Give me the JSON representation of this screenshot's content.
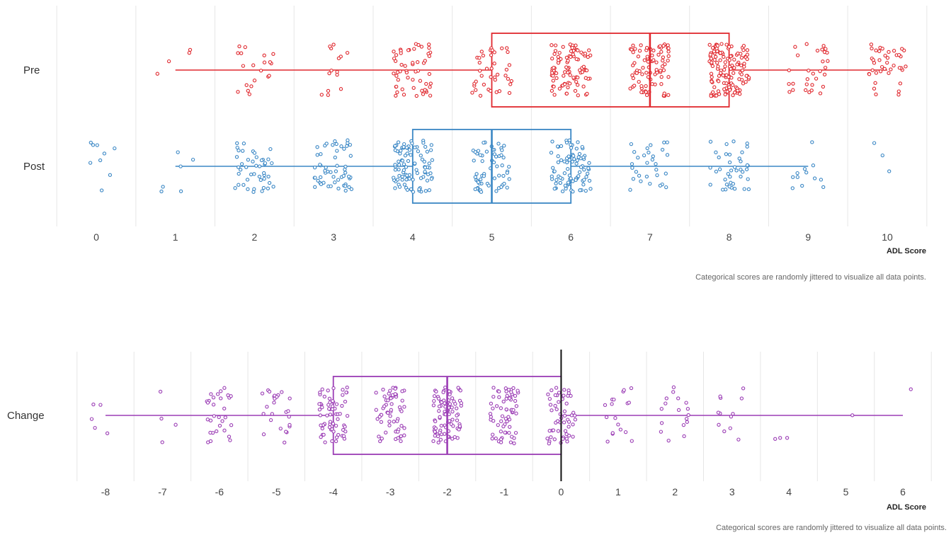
{
  "chart_data": [
    {
      "type": "box-jitter",
      "xlabel": "ADL Score",
      "note": "Categorical scores are randomly jittered to visualize all data points.",
      "xlim": [
        0,
        10
      ],
      "ticks": [
        "0",
        "1",
        "2",
        "3",
        "4",
        "5",
        "6",
        "7",
        "8",
        "9",
        "10"
      ],
      "grid": true,
      "series": [
        {
          "name": "Pre",
          "color": "#e0282e",
          "box": {
            "whisker_low": 1,
            "q1": 5,
            "median": 7,
            "q3": 8,
            "whisker_high": 10
          },
          "counts": {
            "1": 4,
            "2": 20,
            "3": 14,
            "4": 55,
            "5": 40,
            "6": 95,
            "7": 85,
            "8": 130,
            "9": 30,
            "10": 40
          }
        },
        {
          "name": "Post",
          "color": "#3a87c5",
          "box": {
            "whisker_low": 1,
            "q1": 4,
            "median": 5,
            "q3": 6,
            "whisker_high": 9
          },
          "counts": {
            "0": 9,
            "1": 6,
            "2": 45,
            "3": 55,
            "4": 95,
            "5": 60,
            "6": 90,
            "7": 30,
            "8": 40,
            "9": 12,
            "10": 3
          }
        }
      ]
    },
    {
      "type": "box-jitter",
      "xlabel": "ADL Score",
      "note": "Categorical scores are randomly jittered to visualize all data points.",
      "xlim": [
        -8,
        6
      ],
      "ticks": [
        "-8",
        "-7",
        "-6",
        "-5",
        "-4",
        "-3",
        "-2",
        "-1",
        "0",
        "1",
        "2",
        "3",
        "4",
        "5",
        "6"
      ],
      "grid": true,
      "reference_line": 0,
      "series": [
        {
          "name": "Change",
          "color": "#9b3db5",
          "box": {
            "whisker_low": -8,
            "q1": -4,
            "median": -2,
            "q3": 0,
            "whisker_high": 6
          },
          "counts": {
            "-8": 5,
            "-7": 4,
            "-6": 30,
            "-5": 25,
            "-4": 65,
            "-3": 60,
            "-2": 90,
            "-1": 65,
            "0": 55,
            "1": 18,
            "2": 17,
            "3": 12,
            "4": 3,
            "5": 1,
            "6": 1
          }
        }
      ]
    }
  ]
}
